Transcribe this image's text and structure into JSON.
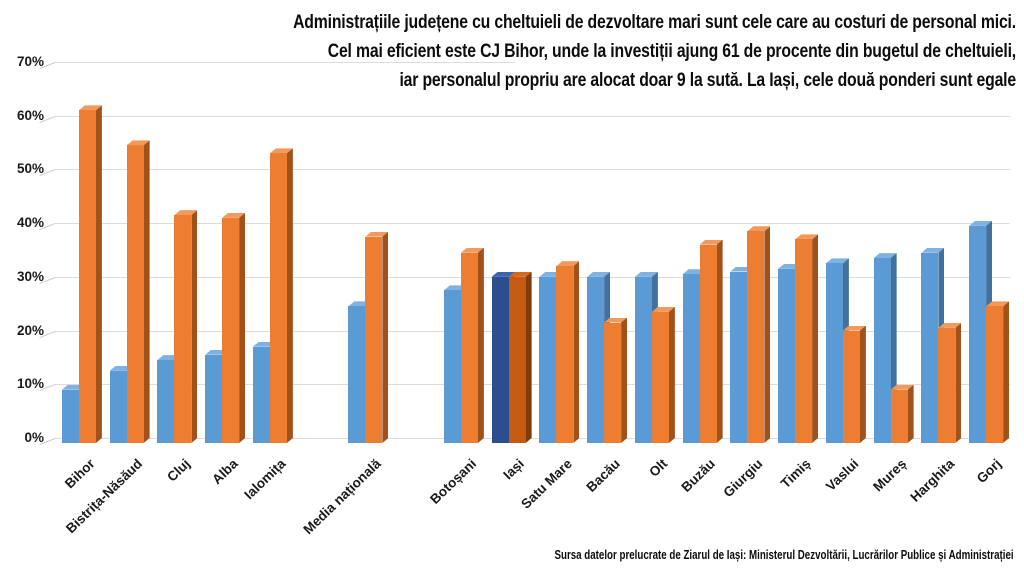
{
  "title": {
    "line1": "Administrațiile județene cu cheltuieli de dezvoltare mari sunt cele care au costuri de personal mici.",
    "line2": "Cel mai eficient este CJ Bihor, unde la investiții ajung 61 de procente din bugetul de cheltuieli,",
    "line3": "iar personalul propriu are alocat doar 9 la sută. La Iași, cele două ponderi sunt egale"
  },
  "source": "Sursa datelor prelucrate de Ziarul de Iași: Ministerul Dezvoltării, Lucrărilor Publice și Administrației",
  "colors": {
    "background": "#FFFFFF",
    "gridline": "#DCDCDC",
    "text": "#111111"
  },
  "chart_data": {
    "type": "bar",
    "title": "Administrațiile județene cu cheltuieli de dezvoltare mari sunt cele care au costuri de personal mici. Cel mai eficient este CJ Bihor, unde la investiții ajung 61 de procente din bugetul de cheltuieli, iar personalul propriu are alocat doar 9 la sută. La Iași, cele două ponderi sunt egale",
    "xlabel": "",
    "ylabel": "",
    "ylim": [
      0,
      70
    ],
    "y_ticks": [
      "0%",
      "10%",
      "20%",
      "30%",
      "40%",
      "50%",
      "60%",
      "70%"
    ],
    "grid": true,
    "legend": "none",
    "style": "3d-clustered-column",
    "highlight_category": "Iași",
    "categories": [
      "Bihor",
      "Bistrița-Năsăud",
      "Cluj",
      "Alba",
      "Ialomița",
      "",
      "Media națională",
      "",
      "Botoșani",
      "Iași",
      "Satu Mare",
      "Bacău",
      "Olt",
      "Buzău",
      "Giurgiu",
      "Timiș",
      "Vaslui",
      "Mureș",
      "Harghita",
      "Gorj"
    ],
    "series": [
      {
        "name": "costuri de personal",
        "color": "#5B9BD5",
        "side_color": "#41719C",
        "top_color": "#7FB2E0",
        "highlight_color": "#2C4D8E",
        "highlight_side_color": "#1F3864",
        "highlight_top_color": "#3A64AC",
        "values": [
          9,
          12.5,
          14.5,
          15.5,
          17,
          null,
          24.5,
          null,
          27.5,
          30,
          30,
          30,
          30,
          30.5,
          31,
          31.5,
          32.5,
          33.5,
          34.5,
          39.5
        ]
      },
      {
        "name": "cheltuieli de dezvoltare",
        "color": "#ED7D31",
        "side_color": "#A0521D",
        "top_color": "#F29A5C",
        "highlight_color": "#C55A11",
        "highlight_side_color": "#7F3B0A",
        "highlight_top_color": "#D56A1E",
        "values": [
          61,
          54.5,
          41.5,
          41,
          53,
          null,
          37.5,
          null,
          34.5,
          30,
          32,
          21.5,
          23.5,
          36,
          38.5,
          37,
          20,
          9,
          20.5,
          24.5
        ]
      }
    ]
  }
}
